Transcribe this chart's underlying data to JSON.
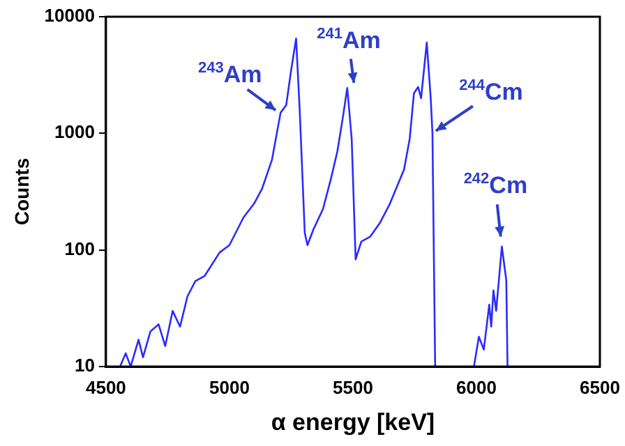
{
  "chart_data": {
    "type": "line",
    "xlabel": "α energy [keV]",
    "ylabel": "Counts",
    "x": [
      4557,
      4580,
      4600,
      4632,
      4650,
      4680,
      4713,
      4740,
      4770,
      4800,
      4830,
      4862,
      4900,
      4960,
      5000,
      5057,
      5100,
      5132,
      5172,
      5207,
      5230,
      5250,
      5270,
      5285,
      5305,
      5316,
      5340,
      5379,
      5410,
      5437,
      5460,
      5477,
      5495,
      5511,
      5534,
      5570,
      5609,
      5650,
      5707,
      5730,
      5747,
      5764,
      5776,
      5799,
      5815,
      5822,
      5833,
      5900,
      5990,
      6010,
      6030,
      6052,
      6060,
      6069,
      6080,
      6103,
      6121,
      6126
    ],
    "series": [
      {
        "color": "#2b2bff",
        "values": [
          10,
          13,
          10,
          17,
          12,
          20,
          23,
          15,
          30,
          22,
          40,
          54,
          60,
          95,
          110,
          190,
          250,
          335,
          590,
          1500,
          1750,
          3500,
          6500,
          1500,
          140,
          110,
          150,
          225,
          400,
          700,
          1400,
          2450,
          900,
          83,
          118,
          130,
          170,
          250,
          490,
          900,
          2200,
          2500,
          2000,
          6000,
          2000,
          1000,
          10,
          null,
          10,
          18,
          14,
          34,
          22,
          45,
          30,
          107,
          55,
          10
        ]
      }
    ],
    "xlim": [
      4500,
      6500
    ],
    "xticks": [
      4500,
      5000,
      5500,
      6000,
      6500
    ],
    "ylim": [
      10,
      10000
    ],
    "yticks": [
      10,
      100,
      1000,
      10000
    ],
    "log": "y",
    "grid": false,
    "legend": false,
    "marker": "none",
    "line_style": "solid",
    "annotations": [
      {
        "text": "$^{243}$Am",
        "x": 5200,
        "y": 1500
      },
      {
        "text": "$^{241}$Am",
        "x": 5506,
        "y": 2500
      },
      {
        "text": "$^{244}$Cm",
        "x": 5822,
        "y": 1000
      },
      {
        "text": "$^{242}$Cm",
        "x": 6100,
        "y": 120
      }
    ]
  }
}
